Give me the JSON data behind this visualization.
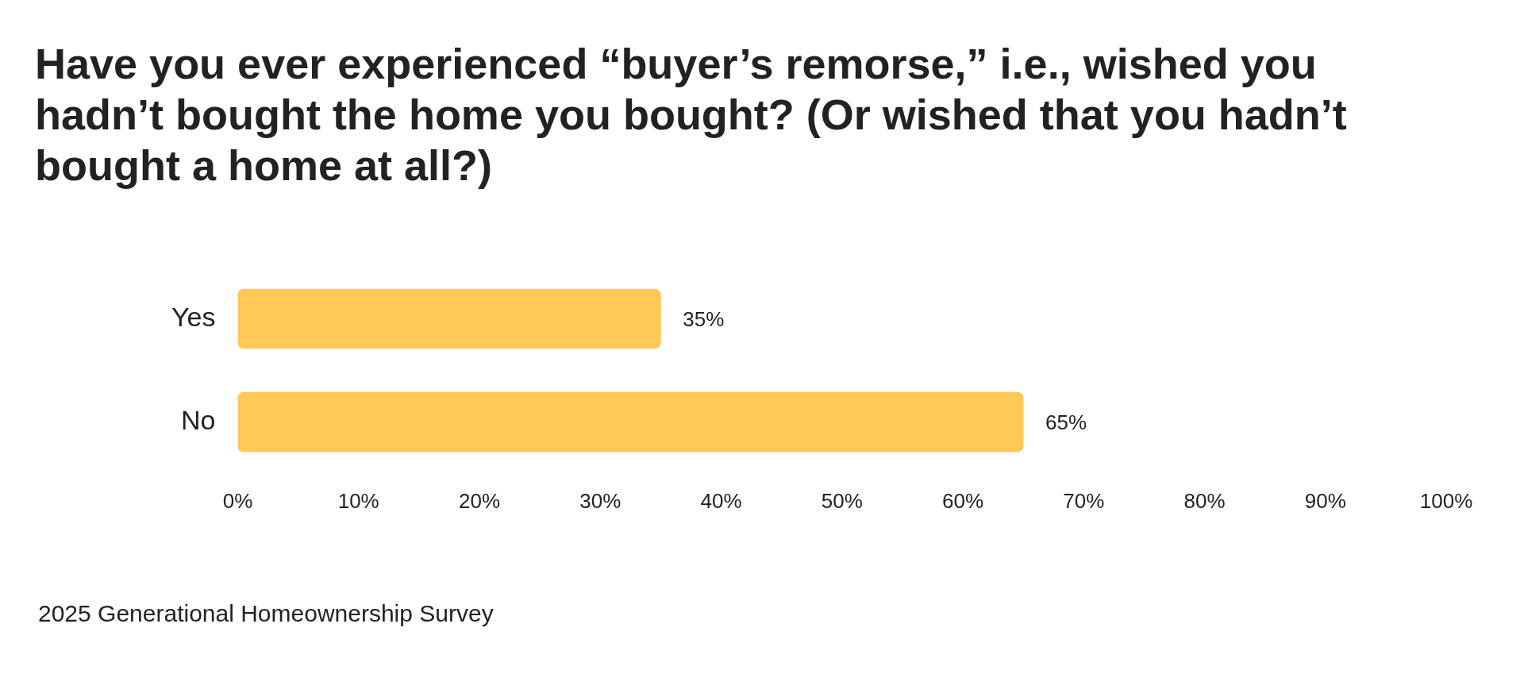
{
  "chart_data": {
    "type": "bar",
    "orientation": "horizontal",
    "title": "Have you ever experienced “buyer’s remorse,” i.e., wished you hadn’t bought the home you bought? (Or wished that you hadn’t bought a home at all?)",
    "categories": [
      "Yes",
      "No"
    ],
    "values": [
      35,
      65
    ],
    "value_labels": [
      "35%",
      "65%"
    ],
    "color": "#ffc857",
    "grid": false,
    "legend": false,
    "xlim": [
      0,
      100
    ],
    "xticks": [
      {
        "value": 0,
        "label": "0%"
      },
      {
        "value": 10,
        "label": "10%"
      },
      {
        "value": 20,
        "label": "20%"
      },
      {
        "value": 30,
        "label": "30%"
      },
      {
        "value": 40,
        "label": "40%"
      },
      {
        "value": 50,
        "label": "50%"
      },
      {
        "value": 60,
        "label": "60%"
      },
      {
        "value": 70,
        "label": "70%"
      },
      {
        "value": 80,
        "label": "80%"
      },
      {
        "value": 90,
        "label": "90%"
      },
      {
        "value": 100,
        "label": "100%"
      }
    ],
    "annotations": [
      "2025 Generational Homeownership Survey"
    ]
  }
}
